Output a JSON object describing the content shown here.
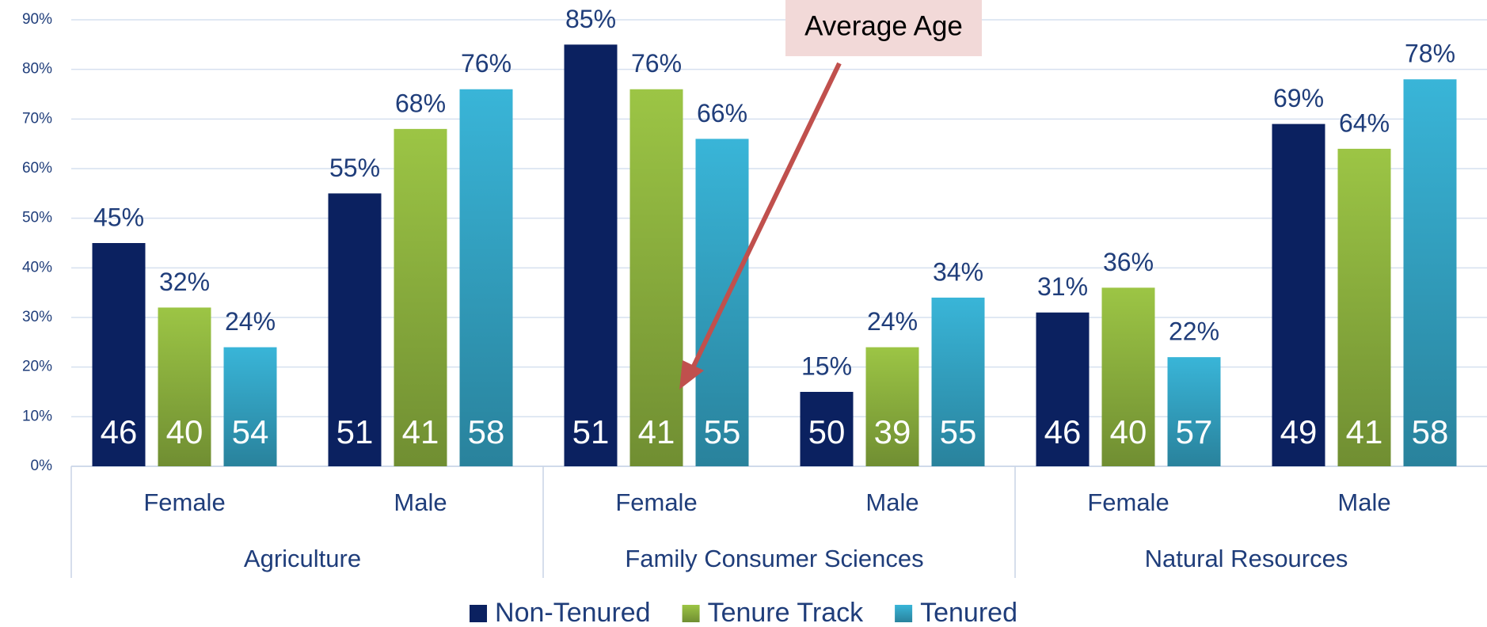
{
  "chart_data": {
    "type": "bar",
    "annotation": "Average Age",
    "groups": [
      "Agriculture",
      "Family Consumer Sciences",
      "Natural Resources"
    ],
    "categories": [
      "Female",
      "Male",
      "Female",
      "Male",
      "Female",
      "Male"
    ],
    "series": [
      {
        "name": "Non-Tenured",
        "color": "#0b2160",
        "values": [
          45,
          55,
          85,
          15,
          31,
          69
        ],
        "value_labels": [
          "45%",
          "55%",
          "85%",
          "15%",
          "31%",
          "69%"
        ],
        "ages": [
          46,
          51,
          51,
          50,
          46,
          49
        ]
      },
      {
        "name": "Tenure Track",
        "color": "#9cc545",
        "values": [
          32,
          68,
          76,
          24,
          36,
          64
        ],
        "value_labels": [
          "32%",
          "68%",
          "76%",
          "24%",
          "36%",
          "64%"
        ],
        "ages": [
          40,
          41,
          41,
          39,
          40,
          41
        ]
      },
      {
        "name": "Tenured",
        "color": "#39b5d8",
        "values": [
          24,
          76,
          66,
          34,
          22,
          78
        ],
        "value_labels": [
          "24%",
          "76%",
          "66%",
          "34%",
          "22%",
          "78%"
        ],
        "ages": [
          54,
          58,
          55,
          55,
          57,
          58
        ]
      }
    ],
    "ylim": [
      0,
      90
    ],
    "yticks": [
      {
        "value": 0,
        "label": "0%"
      },
      {
        "value": 10,
        "label": "10%"
      },
      {
        "value": 20,
        "label": "20%"
      },
      {
        "value": 30,
        "label": "30%"
      },
      {
        "value": 40,
        "label": "40%"
      },
      {
        "value": 50,
        "label": "50%"
      },
      {
        "value": 60,
        "label": "60%"
      },
      {
        "value": 70,
        "label": "70%"
      },
      {
        "value": 80,
        "label": "80%"
      },
      {
        "value": 90,
        "label": "90%"
      }
    ],
    "grid": true
  }
}
